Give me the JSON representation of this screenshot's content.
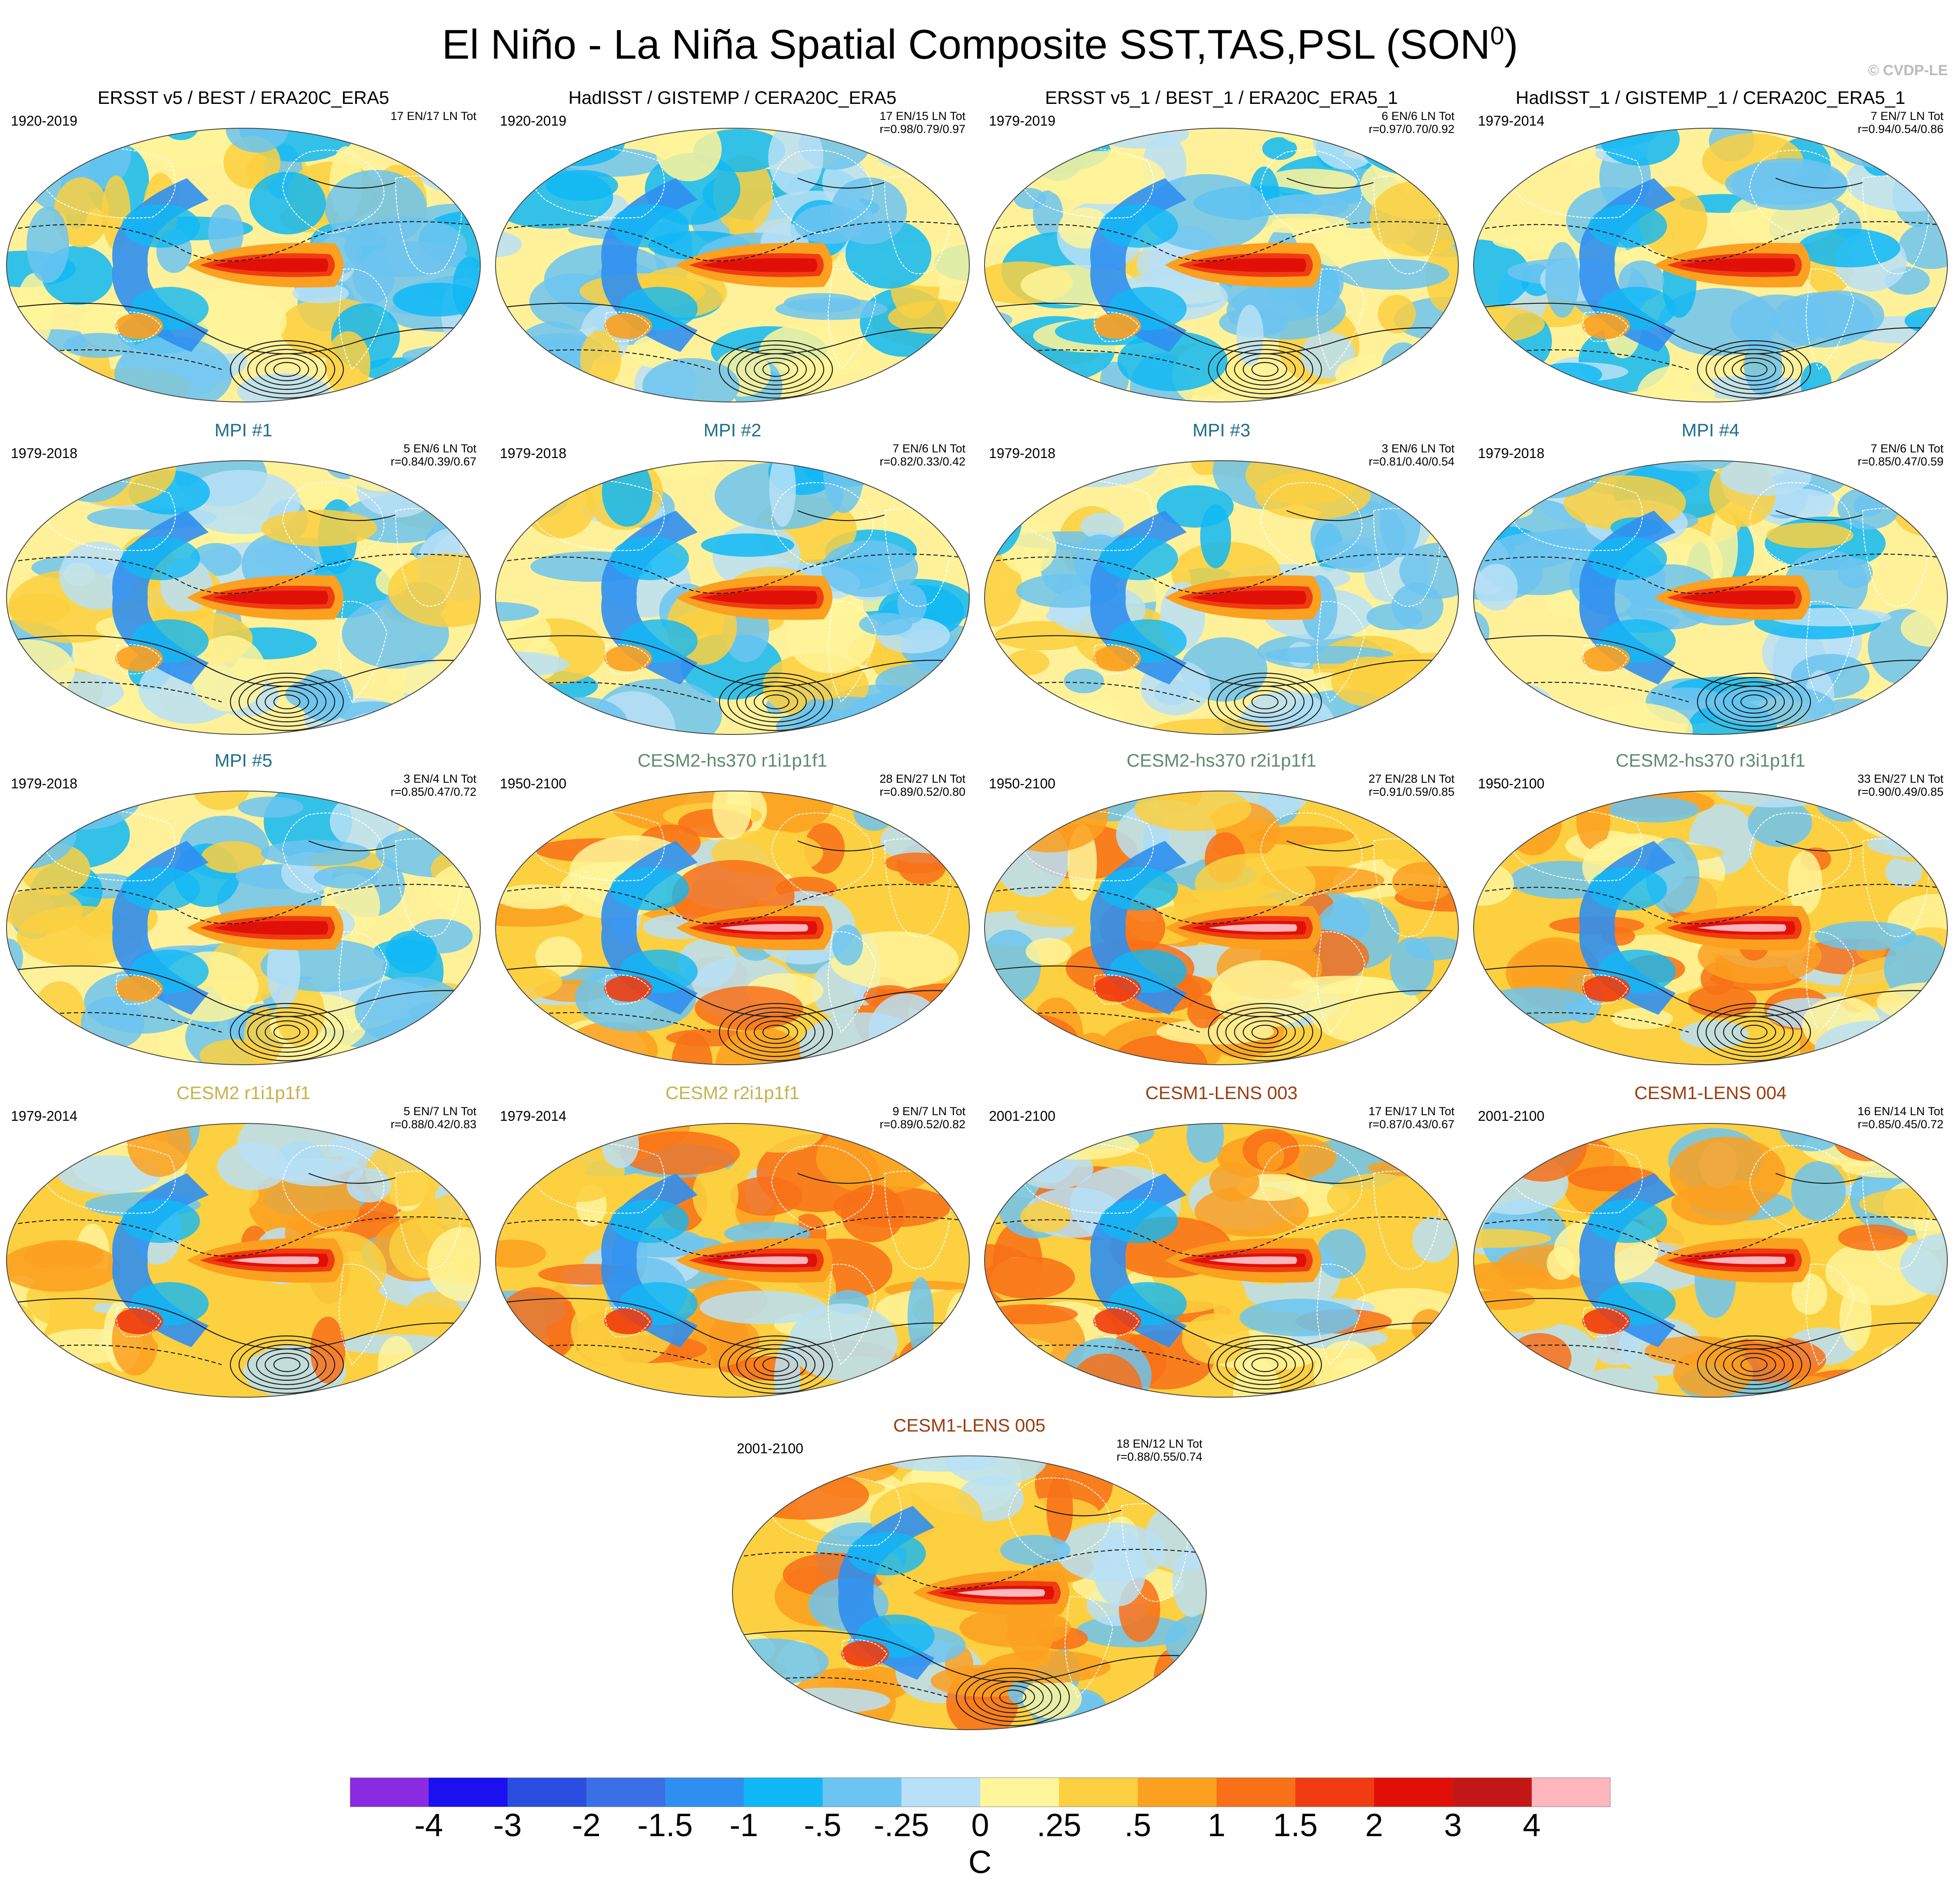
{
  "title": "El Niño - La Niña Spatial Composite SST,TAS,PSL (SON",
  "title_sup": "0",
  "title_close": ")",
  "copyright": "© CVDP-LE",
  "colors": {
    "obs_title": "#000000",
    "mpi_title": "#1f6e8c",
    "hs370_title": "#5e8a6e",
    "cesm2_title": "#c8b04a",
    "lens_title": "#9a3d10",
    "ocean_base": "#fff19a",
    "land_outline": "#ffffff",
    "contour": "#1a1a1a"
  },
  "panels": [
    {
      "title": "ERSST v5 / BEST / ERA20C_ERA5",
      "years": "1920-2019",
      "count": "17 EN/17 LN Tot",
      "stats": "",
      "style": "obs"
    },
    {
      "title": "HadISST / GISTEMP / CERA20C_ERA5",
      "years": "1920-2019",
      "count": "17 EN/15 LN Tot",
      "stats": "r=0.98/0.79/0.97",
      "style": "obs"
    },
    {
      "title": "ERSST v5_1 / BEST_1 / ERA20C_ERA5_1",
      "years": "1979-2019",
      "count": "6 EN/6 LN Tot",
      "stats": "r=0.97/0.70/0.92",
      "style": "obs"
    },
    {
      "title": "HadISST_1 / GISTEMP_1 / CERA20C_ERA5_1",
      "years": "1979-2014",
      "count": "7 EN/7 LN Tot",
      "stats": "r=0.94/0.54/0.86",
      "style": "obs"
    },
    {
      "title": "MPI #1",
      "years": "1979-2018",
      "count": "5 EN/6 LN Tot",
      "stats": "r=0.84/0.39/0.67",
      "style": "mpi"
    },
    {
      "title": "MPI #2",
      "years": "1979-2018",
      "count": "7 EN/6 LN Tot",
      "stats": "r=0.82/0.33/0.42",
      "style": "mpi"
    },
    {
      "title": "MPI #3",
      "years": "1979-2018",
      "count": "3 EN/6 LN Tot",
      "stats": "r=0.81/0.40/0.54",
      "style": "mpi"
    },
    {
      "title": "MPI #4",
      "years": "1979-2018",
      "count": "7 EN/6 LN Tot",
      "stats": "r=0.85/0.47/0.59",
      "style": "mpi"
    },
    {
      "title": "MPI #5",
      "years": "1979-2018",
      "count": "3 EN/4 LN Tot",
      "stats": "r=0.85/0.47/0.72",
      "style": "mpi"
    },
    {
      "title": "CESM2-hs370 r1i1p1f1",
      "years": "1950-2100",
      "count": "28 EN/27 LN Tot",
      "stats": "r=0.89/0.52/0.80",
      "style": "hs370"
    },
    {
      "title": "CESM2-hs370 r2i1p1f1",
      "years": "1950-2100",
      "count": "27 EN/28 LN Tot",
      "stats": "r=0.91/0.59/0.85",
      "style": "hs370"
    },
    {
      "title": "CESM2-hs370 r3i1p1f1",
      "years": "1950-2100",
      "count": "33 EN/27 LN Tot",
      "stats": "r=0.90/0.49/0.85",
      "style": "hs370"
    },
    {
      "title": "CESM2 r1i1p1f1",
      "years": "1979-2014",
      "count": "5 EN/7 LN Tot",
      "stats": "r=0.88/0.42/0.83",
      "style": "cesm2"
    },
    {
      "title": "CESM2 r2i1p1f1",
      "years": "1979-2014",
      "count": "9 EN/7 LN Tot",
      "stats": "r=0.89/0.52/0.82",
      "style": "cesm2"
    },
    {
      "title": "CESM1-LENS 003",
      "years": "2001-2100",
      "count": "17 EN/17 LN Tot",
      "stats": "r=0.87/0.43/0.67",
      "style": "lens"
    },
    {
      "title": "CESM1-LENS 004",
      "years": "2001-2100",
      "count": "16 EN/14 LN Tot",
      "stats": "r=0.85/0.45/0.72",
      "style": "lens"
    },
    {
      "title": "CESM1-LENS 005",
      "years": "2001-2100",
      "count": "18 EN/12 LN Tot",
      "stats": "r=0.88/0.55/0.74",
      "style": "lens"
    }
  ],
  "colorbar": {
    "unit": "C",
    "colors": [
      "#8a2be2",
      "#1a10f0",
      "#2a4ee0",
      "#3a6fe6",
      "#2f8ff0",
      "#10b8f5",
      "#6cc4f0",
      "#b8e0f6",
      "#fff59a",
      "#fcd040",
      "#fca020",
      "#f87018",
      "#f03c10",
      "#e01008",
      "#c41818",
      "#ffb6bc"
    ],
    "labels": [
      "-4",
      "-3",
      "-2",
      "-1.5",
      "-1",
      "-.5",
      "-.25",
      "0",
      ".25",
      ".5",
      "1",
      "1.5",
      "2",
      "3",
      "4"
    ]
  }
}
